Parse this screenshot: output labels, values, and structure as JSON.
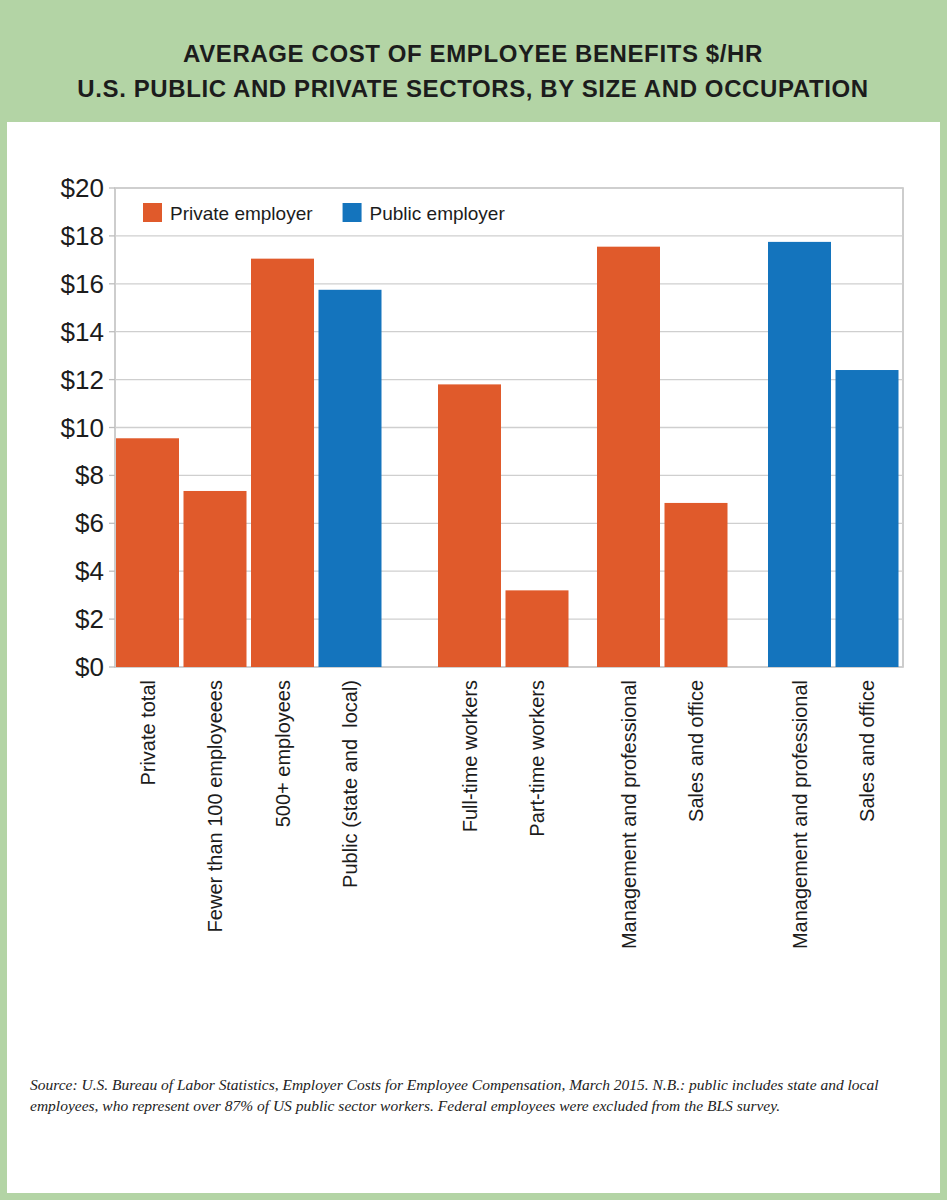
{
  "chart_data": {
    "type": "bar",
    "title": "AVERAGE COST OF EMPLOYEE BENEFITS $/HR",
    "subtitle": "U.S. PUBLIC AND PRIVATE SECTORS, BY SIZE AND OCCUPATION",
    "categories": [
      "Private total",
      "Fewer than 100 employeees",
      "500+ employees",
      "Public (state and  local)",
      "Full-time workers",
      "Part-time workers",
      "Management and professional",
      "Sales and office",
      "Management and professional",
      "Sales and office"
    ],
    "series": [
      {
        "name": "Private employer",
        "color": "#e05a2b",
        "values": [
          9.55,
          7.35,
          17.05,
          null,
          11.8,
          3.2,
          17.55,
          6.85,
          null,
          null
        ]
      },
      {
        "name": "Public employer",
        "color": "#1474bd",
        "values": [
          null,
          null,
          null,
          15.75,
          null,
          null,
          null,
          null,
          17.75,
          12.4
        ]
      }
    ],
    "ylim": [
      0,
      20
    ],
    "yticks": [
      {
        "value": 0,
        "label": "$0"
      },
      {
        "value": 2,
        "label": "$2"
      },
      {
        "value": 4,
        "label": "$4"
      },
      {
        "value": 6,
        "label": "$6"
      },
      {
        "value": 8,
        "label": "$8"
      },
      {
        "value": 10,
        "label": "$10"
      },
      {
        "value": 12,
        "label": "$12"
      },
      {
        "value": 14,
        "label": "$14"
      },
      {
        "value": 16,
        "label": "$16"
      },
      {
        "value": 18,
        "label": "$18"
      },
      {
        "value": 20,
        "label": "$20"
      }
    ],
    "grid": true,
    "legend": "top-left",
    "source": "Source: U.S. Bureau of Labor Statistics, Employer Costs for Employee Compensation, March 2015. N.B.: public includes state and local employees, who represent over 87% of US public sector workers. Federal employees were excluded from the BLS survey."
  }
}
